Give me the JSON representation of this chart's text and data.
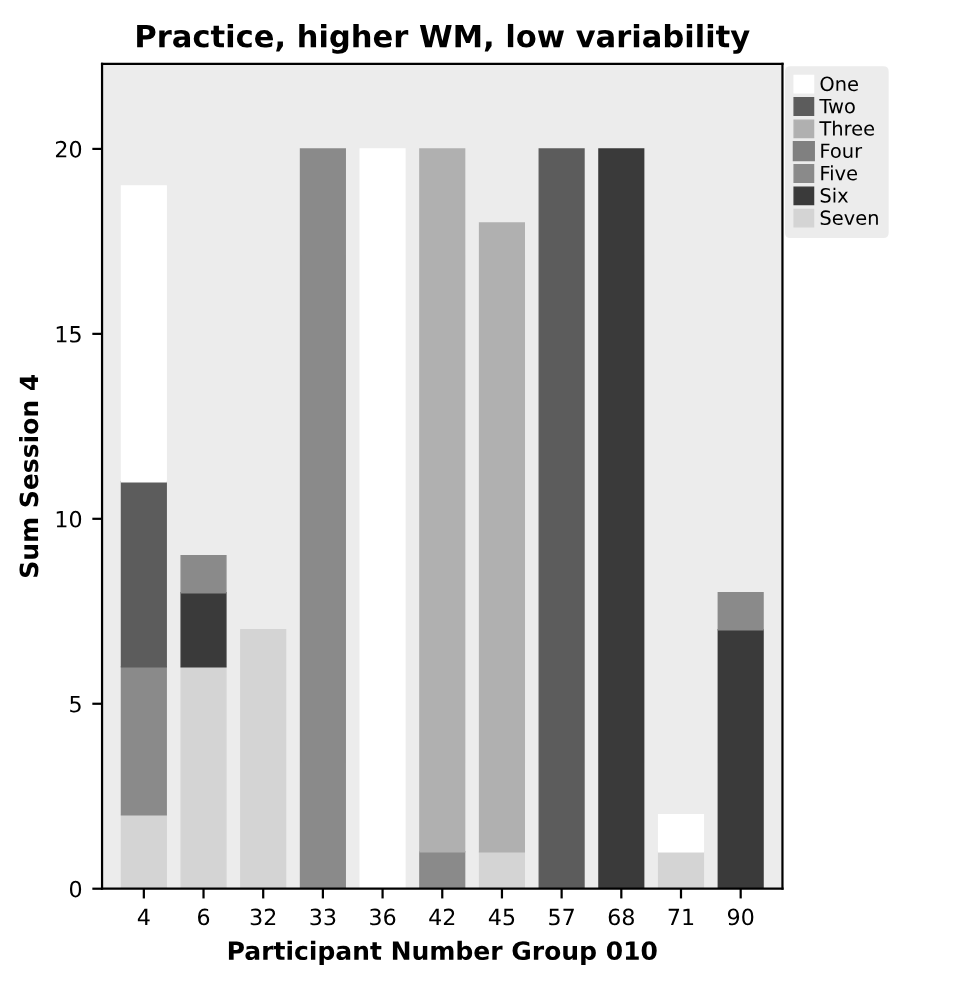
{
  "chart_data": {
    "type": "bar",
    "title": "Practice, higher WM, low variability",
    "xlabel": "Participant Number Group 010",
    "ylabel": "Sum Session 4",
    "categories": [
      "4",
      "6",
      "32",
      "33",
      "36",
      "42",
      "45",
      "57",
      "68",
      "71",
      "90"
    ],
    "stacked": true,
    "ylim": [
      0,
      22.3
    ],
    "yticks": [
      0,
      5,
      10,
      15,
      20
    ],
    "grid": false,
    "legend": "top right",
    "series": [
      {
        "name": "Seven",
        "color": "#d4d4d4",
        "values": [
          2,
          6,
          7,
          null,
          null,
          null,
          1,
          null,
          null,
          1,
          null
        ]
      },
      {
        "name": "Six",
        "color": "#3a3a3a",
        "values": [
          null,
          2,
          null,
          null,
          null,
          null,
          null,
          null,
          20,
          null,
          7
        ]
      },
      {
        "name": "Five",
        "color": "#8a8a8a",
        "values": [
          4,
          1,
          null,
          20,
          null,
          1,
          null,
          null,
          null,
          null,
          1
        ]
      },
      {
        "name": "Four",
        "color": "#808080",
        "values": [
          null,
          null,
          null,
          null,
          null,
          null,
          null,
          null,
          null,
          null,
          null
        ]
      },
      {
        "name": "Three",
        "color": "#b0b0b0",
        "values": [
          null,
          null,
          null,
          null,
          null,
          19,
          17,
          null,
          null,
          null,
          null
        ]
      },
      {
        "name": "Two",
        "color": "#5c5c5c",
        "values": [
          5,
          null,
          null,
          null,
          null,
          null,
          null,
          20,
          null,
          null,
          null
        ]
      },
      {
        "name": "One",
        "color": "#ffffff",
        "values": [
          8,
          null,
          null,
          null,
          20,
          null,
          null,
          null,
          null,
          1,
          null
        ]
      }
    ]
  }
}
